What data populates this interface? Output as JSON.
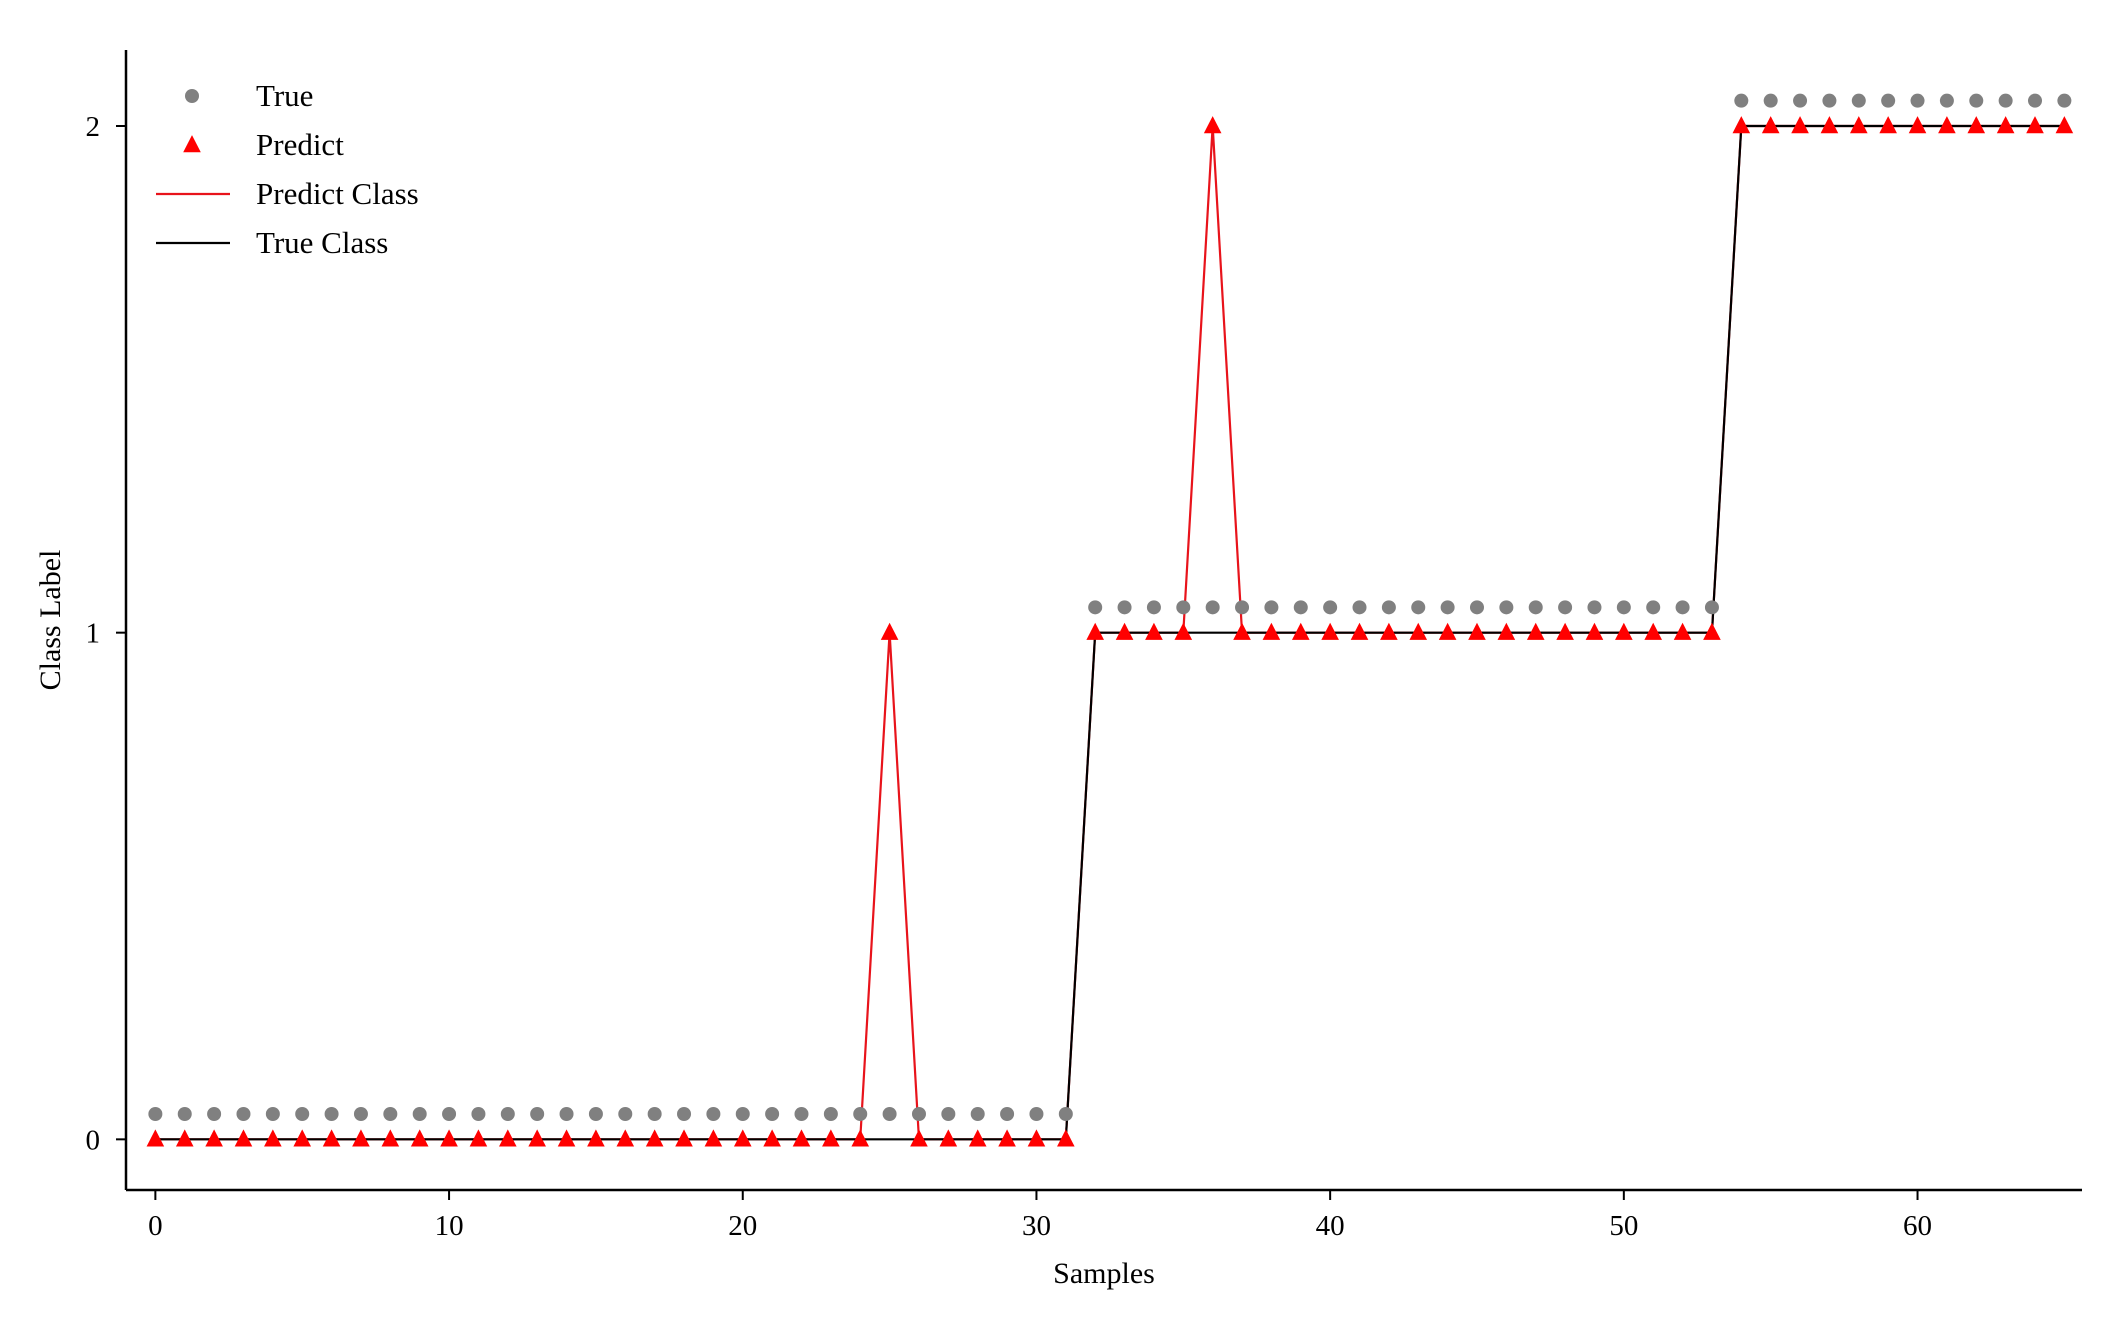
{
  "chart_data": {
    "type": "line",
    "title": "",
    "xlabel": "Samples",
    "ylabel": "Class Label",
    "xlim": [
      -1,
      65.6
    ],
    "ylim": [
      -0.1,
      2.15
    ],
    "xticks": [
      0,
      10,
      20,
      30,
      40,
      50,
      60
    ],
    "yticks": [
      0,
      1,
      2
    ],
    "grid": false,
    "legend_position": "top-left",
    "x": [
      0,
      1,
      2,
      3,
      4,
      5,
      6,
      7,
      8,
      9,
      10,
      11,
      12,
      13,
      14,
      15,
      16,
      17,
      18,
      19,
      20,
      21,
      22,
      23,
      24,
      25,
      26,
      27,
      28,
      29,
      30,
      31,
      32,
      33,
      34,
      35,
      36,
      37,
      38,
      39,
      40,
      41,
      42,
      43,
      44,
      45,
      46,
      47,
      48,
      49,
      50,
      51,
      52,
      53,
      54,
      55,
      56,
      57,
      58,
      59,
      60,
      61,
      62,
      63,
      64,
      65
    ],
    "series": [
      {
        "name": "True",
        "kind": "markers",
        "marker": "circle",
        "color": "#808080",
        "display_offset": 0.05,
        "values": [
          0,
          0,
          0,
          0,
          0,
          0,
          0,
          0,
          0,
          0,
          0,
          0,
          0,
          0,
          0,
          0,
          0,
          0,
          0,
          0,
          0,
          0,
          0,
          0,
          0,
          0,
          0,
          0,
          0,
          0,
          0,
          0,
          1,
          1,
          1,
          1,
          1,
          1,
          1,
          1,
          1,
          1,
          1,
          1,
          1,
          1,
          1,
          1,
          1,
          1,
          1,
          1,
          1,
          1,
          2,
          2,
          2,
          2,
          2,
          2,
          2,
          2,
          2,
          2,
          2,
          2
        ]
      },
      {
        "name": "Predict",
        "kind": "markers",
        "marker": "triangle",
        "color": "#ff0000",
        "values": [
          0,
          0,
          0,
          0,
          0,
          0,
          0,
          0,
          0,
          0,
          0,
          0,
          0,
          0,
          0,
          0,
          0,
          0,
          0,
          0,
          0,
          0,
          0,
          0,
          0,
          1,
          0,
          0,
          0,
          0,
          0,
          0,
          1,
          1,
          1,
          1,
          2,
          1,
          1,
          1,
          1,
          1,
          1,
          1,
          1,
          1,
          1,
          1,
          1,
          1,
          1,
          1,
          1,
          1,
          2,
          2,
          2,
          2,
          2,
          2,
          2,
          2,
          2,
          2,
          2,
          2
        ]
      },
      {
        "name": "Predict Class",
        "kind": "line",
        "color": "#e8131b",
        "values": [
          0,
          0,
          0,
          0,
          0,
          0,
          0,
          0,
          0,
          0,
          0,
          0,
          0,
          0,
          0,
          0,
          0,
          0,
          0,
          0,
          0,
          0,
          0,
          0,
          0,
          1,
          0,
          0,
          0,
          0,
          0,
          0,
          1,
          1,
          1,
          1,
          2,
          1,
          1,
          1,
          1,
          1,
          1,
          1,
          1,
          1,
          1,
          1,
          1,
          1,
          1,
          1,
          1,
          1,
          2,
          2,
          2,
          2,
          2,
          2,
          2,
          2,
          2,
          2,
          2,
          2
        ]
      },
      {
        "name": "True Class",
        "kind": "line",
        "color": "#000000",
        "values": [
          0,
          0,
          0,
          0,
          0,
          0,
          0,
          0,
          0,
          0,
          0,
          0,
          0,
          0,
          0,
          0,
          0,
          0,
          0,
          0,
          0,
          0,
          0,
          0,
          0,
          0,
          0,
          0,
          0,
          0,
          0,
          0,
          1,
          1,
          1,
          1,
          1,
          1,
          1,
          1,
          1,
          1,
          1,
          1,
          1,
          1,
          1,
          1,
          1,
          1,
          1,
          1,
          1,
          1,
          2,
          2,
          2,
          2,
          2,
          2,
          2,
          2,
          2,
          2,
          2,
          2
        ]
      }
    ]
  }
}
